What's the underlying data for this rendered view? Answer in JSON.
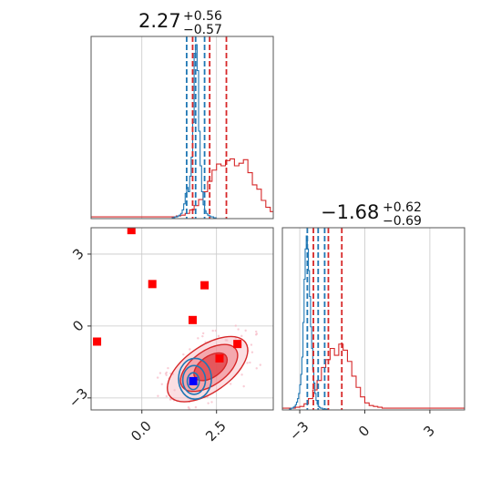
{
  "chart_data": {
    "type": "corner",
    "parameters": [
      {
        "title_value": "2.27",
        "title_plus": "+0.56",
        "title_minus": "−0.57"
      },
      {
        "title_value": "−1.68",
        "title_plus": "+0.62",
        "title_minus": "−0.69"
      }
    ],
    "axes": {
      "p1": {
        "range": [
          -1.7,
          4.4
        ],
        "ticks": [
          0.0,
          2.5
        ],
        "tick_labels": [
          "0.0",
          "2.5"
        ]
      },
      "p2": {
        "range": [
          -3.5,
          4.1
        ],
        "ticks": [
          -3,
          0,
          3
        ],
        "tick_labels": [
          "−3",
          "0",
          "3"
        ]
      },
      "p2_marginal": {
        "range": [
          -3.8,
          4.6
        ],
        "ticks": [
          -3,
          0,
          3
        ],
        "tick_labels": [
          "−3",
          "0",
          "3"
        ]
      }
    },
    "grid": true,
    "colors": {
      "red": "#d62728",
      "blue": "#1f77b4",
      "marker_red": "#ff0000",
      "marker_blue": "#0000ff",
      "pink": "#f7b8c4"
    },
    "quantiles_red": {
      "p1": [
        1.7,
        2.27,
        2.83
      ],
      "p2": [
        -2.37,
        -1.68,
        -1.06
      ]
    },
    "quantiles_blue": {
      "p1": [
        1.5,
        1.8,
        2.1
      ],
      "p2": [
        -2.65,
        -2.15,
        -1.85
      ]
    },
    "hist_red_p1": {
      "bin_start": -1.7,
      "bin_width": 0.15,
      "counts": [
        1,
        1,
        1,
        1,
        1,
        1,
        1,
        1,
        1,
        1,
        1,
        1,
        1,
        1,
        1,
        1,
        1,
        1,
        1,
        2,
        3,
        5,
        9,
        14,
        21,
        30,
        42,
        55,
        62,
        60,
        66,
        68,
        60,
        63,
        67,
        52,
        38,
        33,
        20,
        12,
        7,
        4,
        3,
        2,
        1
      ]
    },
    "hist_blue_p1": {
      "bin_start": 1.0,
      "bin_width": 0.05,
      "counts": [
        0,
        0,
        1,
        1,
        2,
        3,
        5,
        9,
        16,
        28,
        35,
        30,
        48,
        70,
        110,
        190,
        200,
        170,
        100,
        60,
        30,
        15,
        8,
        5,
        3,
        2,
        1,
        1,
        0,
        0
      ]
    },
    "hist_red_p2": {
      "bin_start": -3.8,
      "bin_width": 0.2,
      "counts": [
        1,
        1,
        1,
        2,
        3,
        6,
        12,
        22,
        33,
        48,
        57,
        70,
        62,
        75,
        68,
        55,
        38,
        25,
        14,
        7,
        4,
        3,
        2,
        1,
        1,
        1,
        1,
        1,
        1,
        1,
        1,
        1,
        1,
        1,
        1,
        1,
        1,
        1,
        1,
        1,
        1,
        1
      ]
    },
    "hist_blue_p2": {
      "bin_start": -3.5,
      "bin_width": 0.05,
      "counts": [
        0,
        0,
        1,
        1,
        2,
        3,
        5,
        8,
        12,
        18,
        28,
        40,
        60,
        100,
        150,
        185,
        200,
        185,
        160,
        130,
        95,
        70,
        45,
        30,
        18,
        10,
        6,
        3,
        2,
        1,
        1,
        0,
        0,
        0,
        0,
        0
      ]
    },
    "scatter_red_squares": [
      {
        "x": -1.5,
        "y": -0.65
      },
      {
        "x": -0.35,
        "y": 4.0
      },
      {
        "x": 0.35,
        "y": 1.75
      },
      {
        "x": 1.7,
        "y": 0.25
      },
      {
        "x": 2.1,
        "y": 1.7
      },
      {
        "x": 2.6,
        "y": -1.35
      },
      {
        "x": 3.2,
        "y": -0.75
      }
    ],
    "scatter_blue_squares": [
      {
        "x": 1.72,
        "y": -2.3
      }
    ],
    "red_contours": [
      {
        "cx": 2.3,
        "cy": -1.7,
        "rx": 0.55,
        "ry": 0.55,
        "angle": 0,
        "stretch": 0.45,
        "fill": "#e2494d",
        "opacity": 0.85
      },
      {
        "cx": 2.25,
        "cy": -1.75,
        "rx": 0.95,
        "ry": 0.9,
        "angle": 0,
        "stretch": 0.55,
        "fill": "#ee7b83",
        "opacity": 0.55
      },
      {
        "cx": 2.2,
        "cy": -1.8,
        "rx": 1.35,
        "ry": 1.2,
        "angle": 0,
        "stretch": 0.6,
        "fill": "#f6b6be",
        "opacity": 0.45
      }
    ],
    "blue_contours": [
      {
        "cx": 1.72,
        "cy": -2.3,
        "rx": 0.2,
        "ry": 0.35
      },
      {
        "cx": 1.75,
        "cy": -2.25,
        "rx": 0.38,
        "ry": 0.6
      },
      {
        "cx": 1.78,
        "cy": -2.2,
        "rx": 0.55,
        "ry": 0.85
      }
    ]
  }
}
